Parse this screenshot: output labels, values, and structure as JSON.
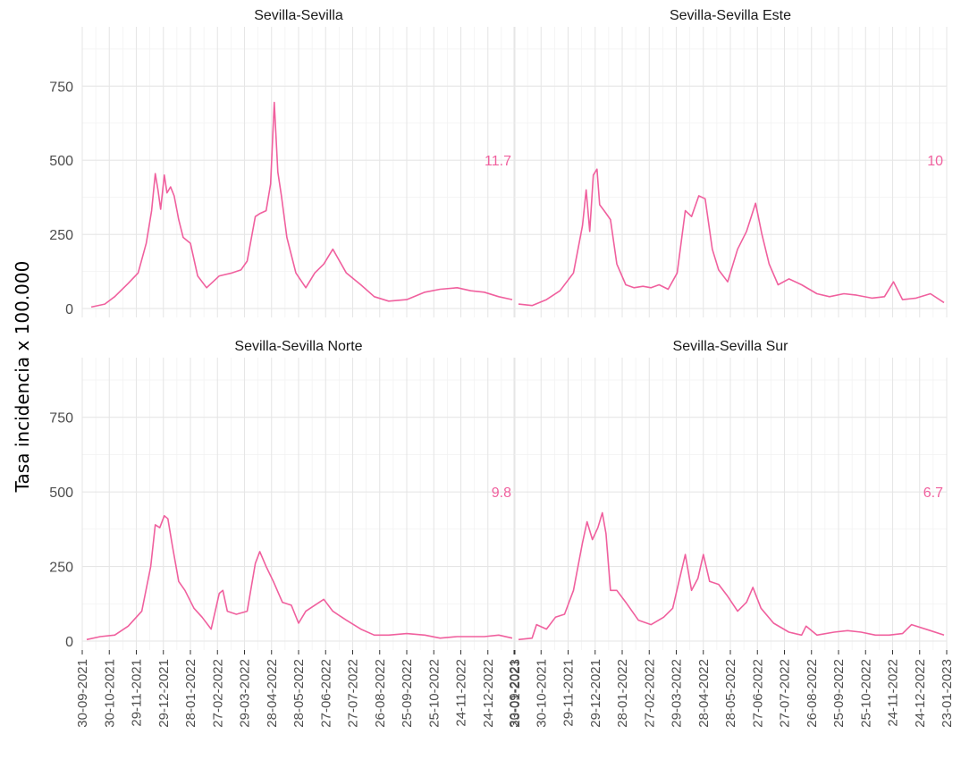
{
  "chart_data": {
    "type": "line",
    "ylabel": "Tasa incidencia x 100.000",
    "ylim": [
      -30,
      950
    ],
    "yticks": [
      0,
      250,
      500,
      750
    ],
    "xlim": [
      "2021-09-30",
      "2023-01-23"
    ],
    "xticks": [
      "30-09-2021",
      "30-10-2021",
      "29-11-2021",
      "29-12-2021",
      "28-01-2022",
      "27-02-2022",
      "29-03-2022",
      "28-04-2022",
      "28-05-2022",
      "27-06-2022",
      "27-07-2022",
      "26-08-2022",
      "25-09-2022",
      "25-10-2022",
      "24-11-2022",
      "24-12-2022",
      "23-01-2023"
    ],
    "grid": true,
    "line_color": "#f0609e",
    "panels": [
      {
        "title": "Sevilla-Sevilla",
        "annotation": "11.7",
        "x": [
          "2021-10-10",
          "2021-10-25",
          "2021-11-05",
          "2021-11-20",
          "2021-12-01",
          "2021-12-10",
          "2021-12-16",
          "2021-12-20",
          "2021-12-23",
          "2021-12-26",
          "2021-12-30",
          "2022-01-02",
          "2022-01-06",
          "2022-01-10",
          "2022-01-15",
          "2022-01-20",
          "2022-01-28",
          "2022-02-05",
          "2022-02-15",
          "2022-03-01",
          "2022-03-15",
          "2022-03-25",
          "2022-04-01",
          "2022-04-10",
          "2022-04-15",
          "2022-04-22",
          "2022-04-27",
          "2022-05-01",
          "2022-05-05",
          "2022-05-09",
          "2022-05-15",
          "2022-05-25",
          "2022-06-05",
          "2022-06-15",
          "2022-06-25",
          "2022-07-05",
          "2022-07-20",
          "2022-08-05",
          "2022-08-20",
          "2022-09-05",
          "2022-09-25",
          "2022-10-15",
          "2022-11-01",
          "2022-11-20",
          "2022-12-05",
          "2022-12-20",
          "2023-01-05",
          "2023-01-20"
        ],
        "y": [
          5,
          15,
          40,
          85,
          120,
          220,
          330,
          455,
          400,
          335,
          450,
          390,
          410,
          380,
          300,
          240,
          220,
          110,
          70,
          110,
          120,
          130,
          160,
          310,
          320,
          330,
          420,
          695,
          460,
          380,
          240,
          120,
          70,
          120,
          150,
          200,
          120,
          80,
          40,
          25,
          30,
          55,
          65,
          70,
          60,
          55,
          40,
          30
        ]
      },
      {
        "title": "Sevilla-Sevilla Este",
        "annotation": "10",
        "x": [
          "2021-10-05",
          "2021-10-20",
          "2021-11-05",
          "2021-11-20",
          "2021-12-05",
          "2021-12-15",
          "2021-12-19",
          "2021-12-23",
          "2021-12-27",
          "2021-12-31",
          "2022-01-03",
          "2022-01-08",
          "2022-01-15",
          "2022-01-22",
          "2022-02-01",
          "2022-02-10",
          "2022-02-20",
          "2022-03-01",
          "2022-03-10",
          "2022-03-20",
          "2022-03-30",
          "2022-04-08",
          "2022-04-15",
          "2022-04-23",
          "2022-04-30",
          "2022-05-08",
          "2022-05-15",
          "2022-05-25",
          "2022-06-05",
          "2022-06-15",
          "2022-06-25",
          "2022-07-02",
          "2022-07-10",
          "2022-07-20",
          "2022-08-01",
          "2022-08-15",
          "2022-09-01",
          "2022-09-15",
          "2022-10-01",
          "2022-10-15",
          "2022-11-01",
          "2022-11-15",
          "2022-11-25",
          "2022-12-05",
          "2022-12-20",
          "2023-01-05",
          "2023-01-20"
        ],
        "y": [
          15,
          10,
          30,
          60,
          120,
          280,
          400,
          260,
          450,
          470,
          350,
          330,
          300,
          150,
          80,
          70,
          75,
          70,
          80,
          65,
          120,
          330,
          310,
          380,
          370,
          200,
          130,
          90,
          200,
          260,
          355,
          250,
          150,
          80,
          100,
          80,
          50,
          40,
          50,
          45,
          35,
          40,
          90,
          30,
          35,
          50,
          20
        ]
      },
      {
        "title": "Sevilla-Sevilla Norte",
        "annotation": "9.8",
        "x": [
          "2021-10-05",
          "2021-10-20",
          "2021-11-05",
          "2021-11-20",
          "2021-12-05",
          "2021-12-15",
          "2021-12-20",
          "2021-12-25",
          "2021-12-30",
          "2022-01-03",
          "2022-01-08",
          "2022-01-15",
          "2022-01-22",
          "2022-02-01",
          "2022-02-10",
          "2022-02-20",
          "2022-03-01",
          "2022-03-05",
          "2022-03-10",
          "2022-03-20",
          "2022-04-01",
          "2022-04-10",
          "2022-04-15",
          "2022-04-22",
          "2022-04-30",
          "2022-05-10",
          "2022-05-20",
          "2022-05-28",
          "2022-06-05",
          "2022-06-15",
          "2022-06-25",
          "2022-07-05",
          "2022-07-20",
          "2022-08-05",
          "2022-08-20",
          "2022-09-05",
          "2022-09-25",
          "2022-10-15",
          "2022-11-01",
          "2022-11-20",
          "2022-12-05",
          "2022-12-20",
          "2023-01-05",
          "2023-01-20"
        ],
        "y": [
          5,
          15,
          20,
          50,
          100,
          250,
          390,
          380,
          420,
          410,
          320,
          200,
          170,
          110,
          80,
          40,
          160,
          170,
          100,
          90,
          100,
          260,
          300,
          250,
          200,
          130,
          120,
          60,
          100,
          120,
          140,
          100,
          70,
          40,
          20,
          20,
          25,
          20,
          10,
          15,
          15,
          15,
          20,
          10
        ]
      },
      {
        "title": "Sevilla-Sevilla Sur",
        "annotation": "6.7",
        "x": [
          "2021-10-05",
          "2021-10-20",
          "2021-10-25",
          "2021-11-05",
          "2021-11-15",
          "2021-11-25",
          "2021-12-05",
          "2021-12-15",
          "2021-12-20",
          "2021-12-26",
          "2022-01-01",
          "2022-01-06",
          "2022-01-10",
          "2022-01-15",
          "2022-01-22",
          "2022-02-01",
          "2022-02-15",
          "2022-03-01",
          "2022-03-15",
          "2022-03-25",
          "2022-04-01",
          "2022-04-08",
          "2022-04-15",
          "2022-04-22",
          "2022-04-28",
          "2022-05-05",
          "2022-05-15",
          "2022-05-25",
          "2022-06-05",
          "2022-06-15",
          "2022-06-22",
          "2022-07-01",
          "2022-07-15",
          "2022-08-01",
          "2022-08-15",
          "2022-08-20",
          "2022-09-01",
          "2022-09-20",
          "2022-10-05",
          "2022-10-20",
          "2022-11-05",
          "2022-11-20",
          "2022-12-05",
          "2022-12-15",
          "2023-01-05",
          "2023-01-20"
        ],
        "y": [
          5,
          10,
          55,
          40,
          80,
          90,
          170,
          330,
          400,
          340,
          380,
          430,
          360,
          170,
          170,
          130,
          70,
          55,
          80,
          110,
          200,
          290,
          170,
          210,
          290,
          200,
          190,
          150,
          100,
          130,
          180,
          110,
          60,
          30,
          20,
          50,
          20,
          30,
          35,
          30,
          20,
          20,
          25,
          55,
          35,
          20
        ]
      }
    ]
  }
}
